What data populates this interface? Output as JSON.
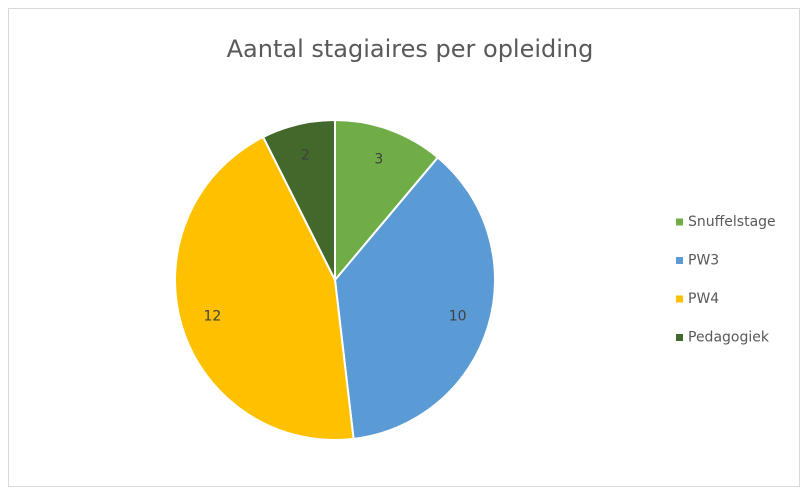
{
  "chart_data": {
    "type": "pie",
    "title": "Aantal stagiaires per opleiding",
    "categories": [
      "Snuffelstage",
      "PW3",
      "PW4",
      "Pedagogiek"
    ],
    "values": [
      3,
      10,
      12,
      2
    ],
    "colors": [
      "#70ad47",
      "#5b9bd5",
      "#ffc000",
      "#43682b"
    ],
    "legend": "right"
  }
}
